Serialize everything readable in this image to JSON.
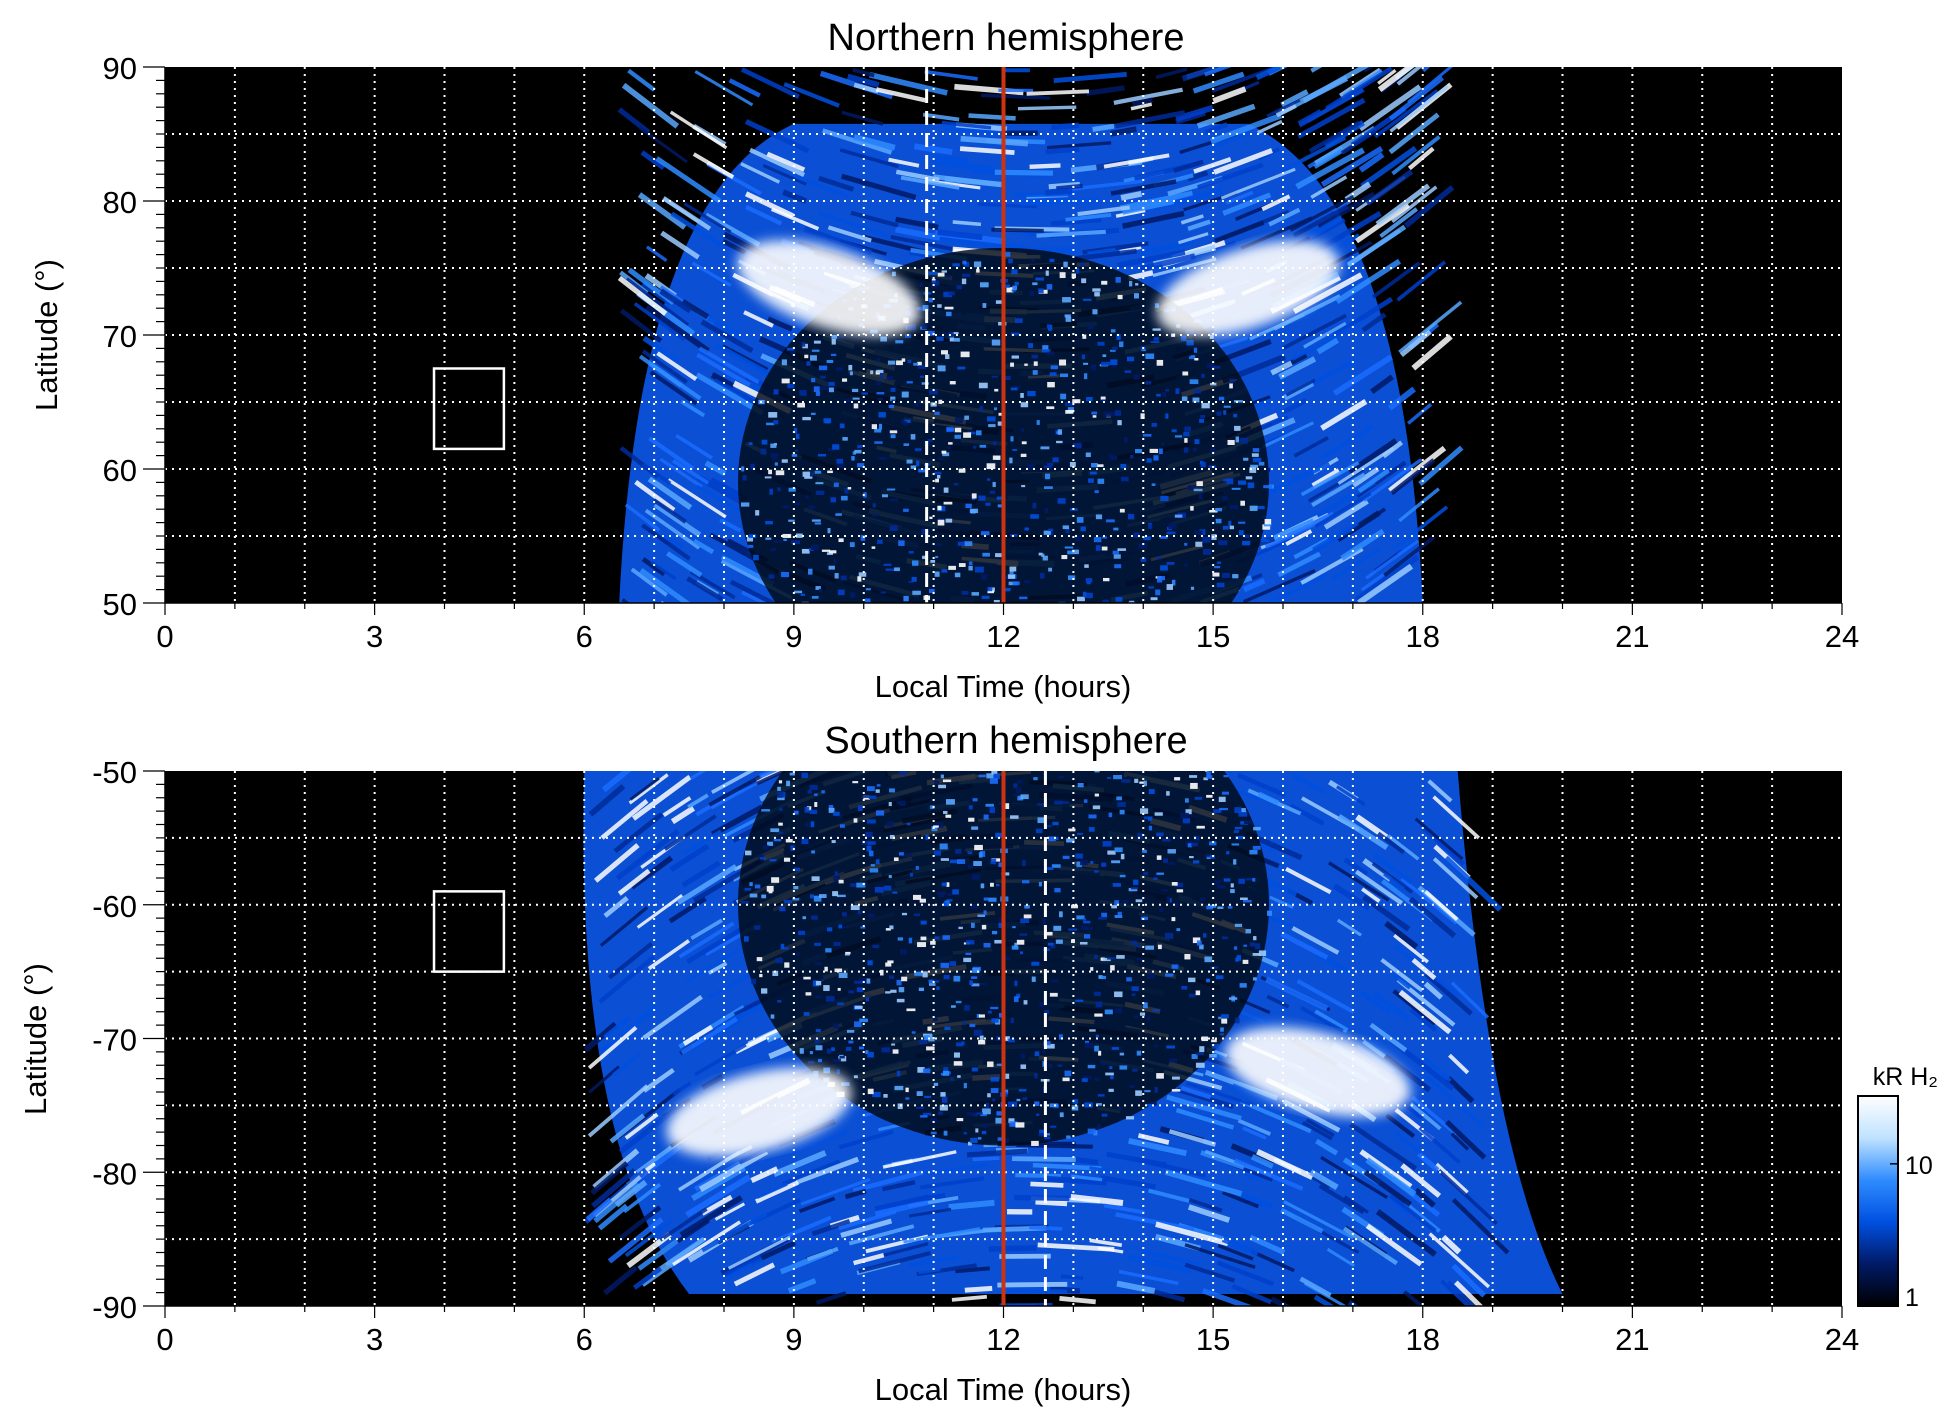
{
  "chart_data": [
    {
      "type": "heatmap",
      "title": "Northern hemisphere",
      "xlabel": "Local Time (hours)",
      "ylabel": "Latitude (°)",
      "xlim": [
        0,
        24
      ],
      "ylim": [
        50,
        90
      ],
      "xticks": [
        0,
        3,
        6,
        9,
        12,
        15,
        18,
        21,
        24
      ],
      "xtick_labels": [
        "0",
        "3",
        "6",
        "9",
        "12",
        "15",
        "18",
        "21",
        "24"
      ],
      "yticks": [
        50,
        60,
        70,
        80,
        90
      ],
      "ytick_labels": [
        "50",
        "60",
        "70",
        "80",
        "90"
      ],
      "grid": true,
      "grid_x_step": 1,
      "grid_y_step": 5,
      "coverage": {
        "lt_start": 6.5,
        "lt_end": 18,
        "lat_pole_edge": 86.5
      },
      "oval_bands": [
        {
          "lt": 9.5,
          "lat_from": 71,
          "lat_to": 76,
          "brightness": "high"
        },
        {
          "lt": 15.5,
          "lat_from": 71,
          "lat_to": 76,
          "brightness": "high"
        }
      ],
      "noon_line": 12,
      "dashed_marker": 10.9,
      "box": {
        "lt_from": 3.85,
        "lt_to": 4.85,
        "lat_from": 61.5,
        "lat_to": 67.5
      }
    },
    {
      "type": "heatmap",
      "title": "Southern hemisphere",
      "xlabel": "Local Time (hours)",
      "ylabel": "Latitude (°)",
      "xlim": [
        0,
        24
      ],
      "ylim": [
        -90,
        -50
      ],
      "xticks": [
        0,
        3,
        6,
        9,
        12,
        15,
        18,
        21,
        24
      ],
      "xtick_labels": [
        "0",
        "3",
        "6",
        "9",
        "12",
        "15",
        "18",
        "21",
        "24"
      ],
      "yticks": [
        -90,
        -80,
        -70,
        -60,
        -50
      ],
      "ytick_labels": [
        "-90",
        "-80",
        "-70",
        "-60",
        "-50"
      ],
      "grid": true,
      "grid_x_step": 1,
      "grid_y_step": 5,
      "coverage": {
        "lt_start": 6,
        "lt_end": 18.5,
        "lat_pole_edge": -90
      },
      "oval_bands": [
        {
          "lt": 8.5,
          "lat_from": -78,
          "lat_to": -73,
          "brightness": "high"
        },
        {
          "lt": 16.5,
          "lat_from": -75,
          "lat_to": -70,
          "brightness": "high"
        }
      ],
      "noon_line": 12,
      "dashed_marker": 12.6,
      "box": {
        "lt_from": 3.85,
        "lt_to": 4.85,
        "lat_from": -65,
        "lat_to": -59
      }
    }
  ],
  "colorbar": {
    "label": "kR H₂",
    "scale": "log",
    "range": [
      1,
      30
    ],
    "ticks": [
      1,
      10
    ],
    "tick_labels": [
      "1",
      "10"
    ],
    "colors": [
      "#000000",
      "#001a66",
      "#0050e0",
      "#2f8cff",
      "#bfe2ff",
      "#ffffff"
    ]
  },
  "colors": {
    "background": "#000000",
    "noon_line": "#cc3311",
    "grid": "#ffffff",
    "box": "#ffffff"
  }
}
